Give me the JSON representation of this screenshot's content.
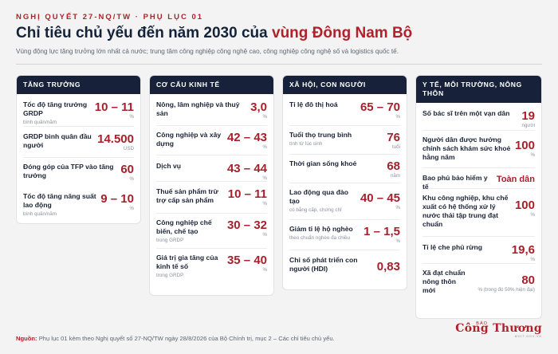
{
  "header": {
    "kicker": "NGHỊ QUYẾT 27-NQ/TW · PHỤ LỤC 01",
    "title_prefix": "Chỉ tiêu chủ yếu đến năm 2030 của ",
    "title_highlight": "vùng Đông Nam Bộ",
    "subtitle": "Vùng động lực tăng trưởng lớn nhất cả nước; trung tâm công nghiệp công nghệ cao, công nghiệp công nghệ số và logistics quốc tế."
  },
  "columns": [
    {
      "title": "TĂNG TRƯỞNG",
      "items": [
        {
          "name": "Tốc độ tăng trưởng GRDP",
          "note": "bình quân/năm",
          "value": "10 – 11",
          "unit": "%"
        },
        {
          "name": "GRDP bình quân đầu người",
          "note": "",
          "value": "14.500",
          "unit": "USD"
        },
        {
          "name": "Đóng góp của TFP vào tăng trưởng",
          "note": "",
          "value": "60",
          "unit": "%"
        },
        {
          "name": "Tốc độ tăng năng suất lao động",
          "note": "bình quân/năm",
          "value": "9 – 10",
          "unit": "%"
        }
      ]
    },
    {
      "title": "CƠ CẤU KINH TẾ",
      "items": [
        {
          "name": "Nông, lâm nghiệp và thuỷ sản",
          "note": "",
          "value": "3,0",
          "unit": "%"
        },
        {
          "name": "Công nghiệp và xây dựng",
          "note": "",
          "value": "42 – 43",
          "unit": "%"
        },
        {
          "name": "Dịch vụ",
          "note": "",
          "value": "43 – 44",
          "unit": "%"
        },
        {
          "name": "Thuế sản phẩm trừ trợ cấp sản phẩm",
          "note": "",
          "value": "10 – 11",
          "unit": "%"
        },
        {
          "name": "Công nghiệp chế biến, chế tạo",
          "note": "trong GRDP",
          "value": "30 – 32",
          "unit": "%"
        },
        {
          "name": "Giá trị gia tăng của kinh tế số",
          "note": "trong GRDP",
          "value": "35 – 40",
          "unit": "%"
        }
      ]
    },
    {
      "title": "XÃ HỘI, CON NGƯỜI",
      "items": [
        {
          "name": "Tỉ lệ đô thị hoá",
          "note": "",
          "value": "65 – 70",
          "unit": "%"
        },
        {
          "name": "Tuổi thọ trung bình",
          "note": "tính từ lúc sinh",
          "value": "76",
          "unit": "tuổi"
        },
        {
          "name": "Thời gian sống khoẻ",
          "note": "",
          "value": "68",
          "unit": "năm"
        },
        {
          "name": "Lao động qua đào tạo",
          "note": "có bằng cấp, chứng chỉ",
          "value": "40 – 45",
          "unit": "%"
        },
        {
          "name": "Giảm tỉ lệ hộ nghèo",
          "note": "theo chuẩn nghèo đa chiều",
          "value": "1 – 1,5",
          "unit": "%"
        },
        {
          "name": "Chỉ số phát triển con người (HDI)",
          "note": "",
          "value": "0,83",
          "unit": ""
        }
      ]
    },
    {
      "title": "Y TẾ, MÔI TRƯỜNG, NÔNG THÔN",
      "items": [
        {
          "name": "Số bác sĩ trên một vạn dân",
          "note": "",
          "value": "19",
          "unit": "người"
        },
        {
          "name": "Người dân được hưởng chính sách khám sức khoẻ hằng năm",
          "note": "",
          "value": "100",
          "unit": "%"
        },
        {
          "name": "Bao phủ bảo hiểm y tế",
          "note": "",
          "value": "Toàn dân",
          "unit": ""
        },
        {
          "name": "Khu công nghiệp, khu chế xuất có hệ thống xử lý nước thải tập trung đạt chuẩn",
          "note": "",
          "value": "100",
          "unit": "%"
        },
        {
          "name": "Tỉ lệ che phủ rừng",
          "note": "",
          "value": "19,6",
          "unit": "%"
        },
        {
          "name": "Xã đạt chuẩn nông thôn mới",
          "note": "",
          "value": "80",
          "unit": "% (trong đó 50% hiện đại)"
        }
      ]
    }
  ],
  "footer": {
    "source_label": "Nguồn:",
    "source_text": " Phụ lục 01 kèm theo Nghị quyết số 27-NQ/TW ngày 28/8/2026 của Bộ Chính trị, mục 2 – Các chỉ tiêu chủ yếu."
  },
  "logo": {
    "small": "BÁO",
    "brand": "Công Thương",
    "tagline": "MOIT.GOV.VN"
  },
  "colors": {
    "accent": "#b2212b",
    "header_bg": "#17223a",
    "page_bg": "#f3f3f3"
  }
}
